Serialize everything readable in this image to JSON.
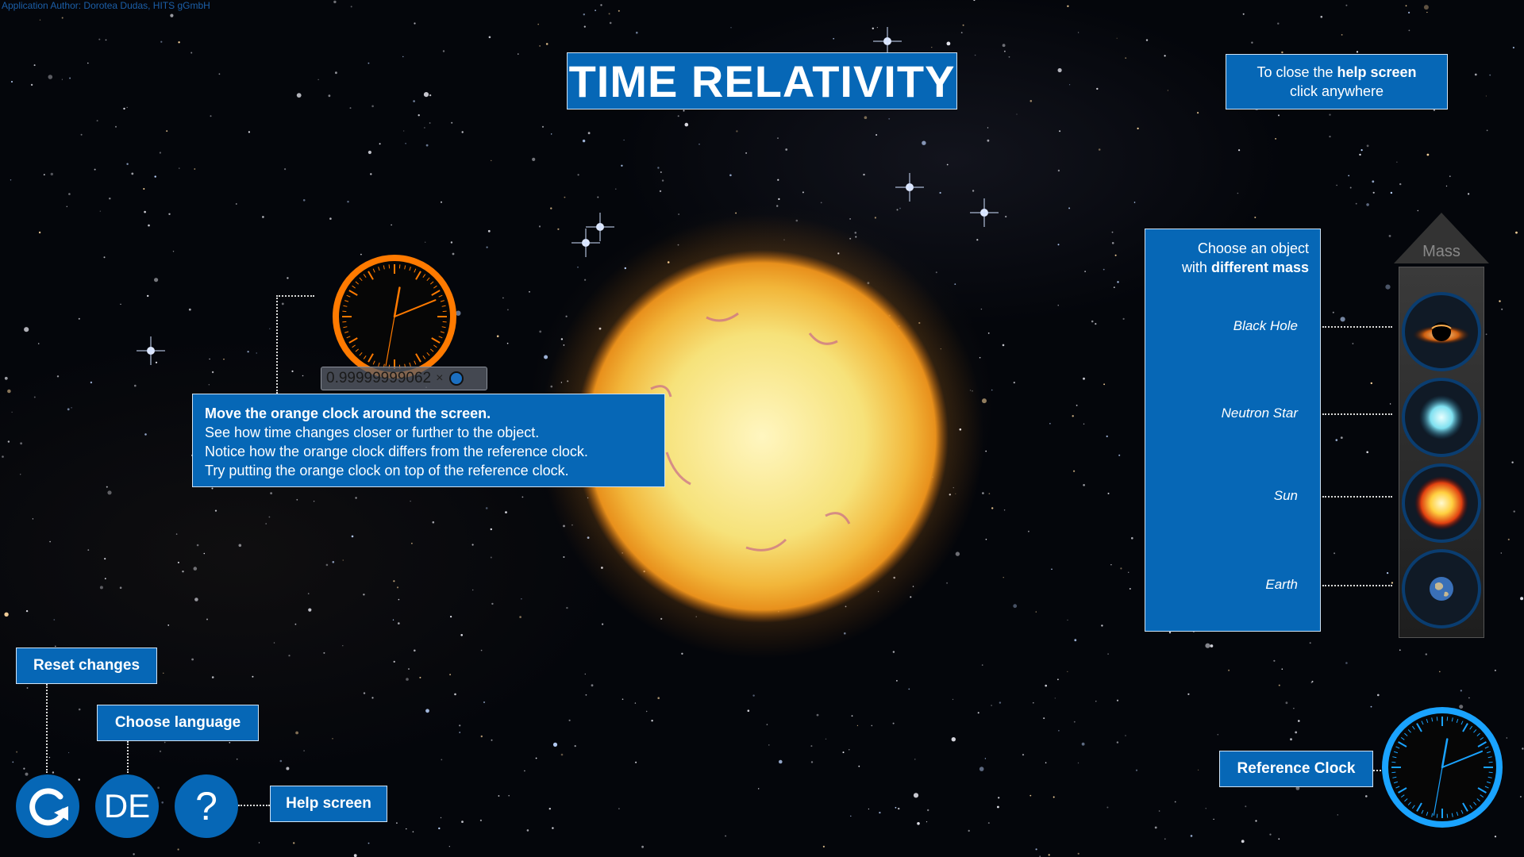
{
  "author": "Application Author: Dorotea Dudas, HITS gGmbH",
  "title": "TIME RELATIVITY",
  "close_help": {
    "line1_pre": "To close the ",
    "line1_bold": "help screen",
    "line2": "click anywhere"
  },
  "instructions": {
    "line1": "Move the orange clock around the screen.",
    "line2": "See how time changes closer or further to the object.",
    "line3": "Notice how the orange clock differs from the reference clock.",
    "line4": "Try putting the orange clock on top of the reference clock."
  },
  "time_factor": "0.99999999062",
  "time_factor_suffix": "×",
  "mass_panel": {
    "header_line1": "Choose an object",
    "header_pre": "with ",
    "header_bold": "different mass",
    "axis_label": "Mass",
    "objects": [
      "Black Hole",
      "Neutron Star",
      "Sun",
      "Earth"
    ]
  },
  "controls": {
    "reset_label": "Reset changes",
    "language_label": "Choose language",
    "language_code": "DE",
    "help_label": "Help screen",
    "help_symbol": "?",
    "reference_clock_label": "Reference Clock"
  },
  "colors": {
    "panel_blue": "#0667b6",
    "orange_clock": "#ff7a00",
    "reference_clock": "#1aa3ff"
  }
}
